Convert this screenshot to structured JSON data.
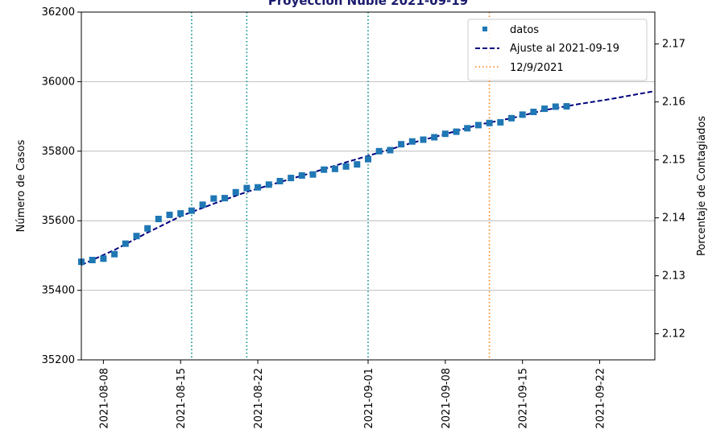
{
  "chart_data": {
    "type": "scatter",
    "title": "Proyección Ñuble 2021-09-19",
    "ylabel": "Número de Casos",
    "y2label": "Porcentaje de Contagiados",
    "xlim": [
      "2021-08-06",
      "2021-09-27"
    ],
    "ylim": [
      35200,
      36200
    ],
    "y2lim": [
      2.1155,
      2.1755
    ],
    "x_ticks": [
      "2021-08-08",
      "2021-08-15",
      "2021-08-22",
      "2021-09-01",
      "2021-09-08",
      "2021-09-15",
      "2021-09-22"
    ],
    "y_ticks": [
      "35200",
      "35400",
      "35600",
      "35800",
      "36000",
      "36200"
    ],
    "y2_ticks": [
      "2.12",
      "2.13",
      "2.14",
      "2.15",
      "2.16",
      "2.17"
    ],
    "grid": "horizontal",
    "legend_position": "top-right",
    "series": [
      {
        "name": "datos",
        "style": "square-markers",
        "color": "#1f77b4",
        "x": [
          "2021-08-06",
          "2021-08-07",
          "2021-08-08",
          "2021-08-09",
          "2021-08-10",
          "2021-08-11",
          "2021-08-12",
          "2021-08-13",
          "2021-08-14",
          "2021-08-15",
          "2021-08-16",
          "2021-08-17",
          "2021-08-18",
          "2021-08-19",
          "2021-08-20",
          "2021-08-21",
          "2021-08-22",
          "2021-08-23",
          "2021-08-24",
          "2021-08-25",
          "2021-08-26",
          "2021-08-27",
          "2021-08-28",
          "2021-08-29",
          "2021-08-30",
          "2021-08-31",
          "2021-09-01",
          "2021-09-02",
          "2021-09-03",
          "2021-09-04",
          "2021-09-05",
          "2021-09-06",
          "2021-09-07",
          "2021-09-08",
          "2021-09-09",
          "2021-09-10",
          "2021-09-11",
          "2021-09-12",
          "2021-09-13",
          "2021-09-14",
          "2021-09-15",
          "2021-09-16",
          "2021-09-17",
          "2021-09-18",
          "2021-09-19"
        ],
        "y": [
          35482,
          35487,
          35491,
          35504,
          35534,
          35556,
          35578,
          35605,
          35617,
          35621,
          35629,
          35646,
          35664,
          35665,
          35682,
          35694,
          35696,
          35704,
          35714,
          35723,
          35730,
          35733,
          35747,
          35749,
          35756,
          35762,
          35777,
          35800,
          35803,
          35820,
          35828,
          35833,
          35840,
          35850,
          35856,
          35866,
          35875,
          35881,
          35883,
          35895,
          35905,
          35913,
          35922,
          35928,
          35929
        ]
      },
      {
        "name": "Ajuste al 2021-09-19",
        "style": "dashed-line",
        "color": "#000080",
        "x": [
          "2021-08-06",
          "2021-08-09",
          "2021-08-12",
          "2021-08-15",
          "2021-08-18",
          "2021-08-21",
          "2021-08-24",
          "2021-08-27",
          "2021-08-30",
          "2021-09-02",
          "2021-09-05",
          "2021-09-08",
          "2021-09-11",
          "2021-09-14",
          "2021-09-17",
          "2021-09-20",
          "2021-09-23",
          "2021-09-27"
        ],
        "y": [
          35473,
          35516,
          35566,
          35613,
          35649,
          35683,
          35711,
          35739,
          35768,
          35796,
          35824,
          35849,
          35876,
          35895,
          35918,
          35935,
          35950,
          35973
        ]
      },
      {
        "name": "12/9/2021",
        "style": "dotted-vline",
        "color": "#ff7f0e",
        "x": "2021-09-12"
      }
    ],
    "reference_lines": [
      {
        "x": "2021-08-16",
        "color": "#008b8b",
        "style": "dotted"
      },
      {
        "x": "2021-08-21",
        "color": "#008b8b",
        "style": "dotted"
      },
      {
        "x": "2021-09-01",
        "color": "#008b8b",
        "style": "dotted"
      }
    ]
  }
}
